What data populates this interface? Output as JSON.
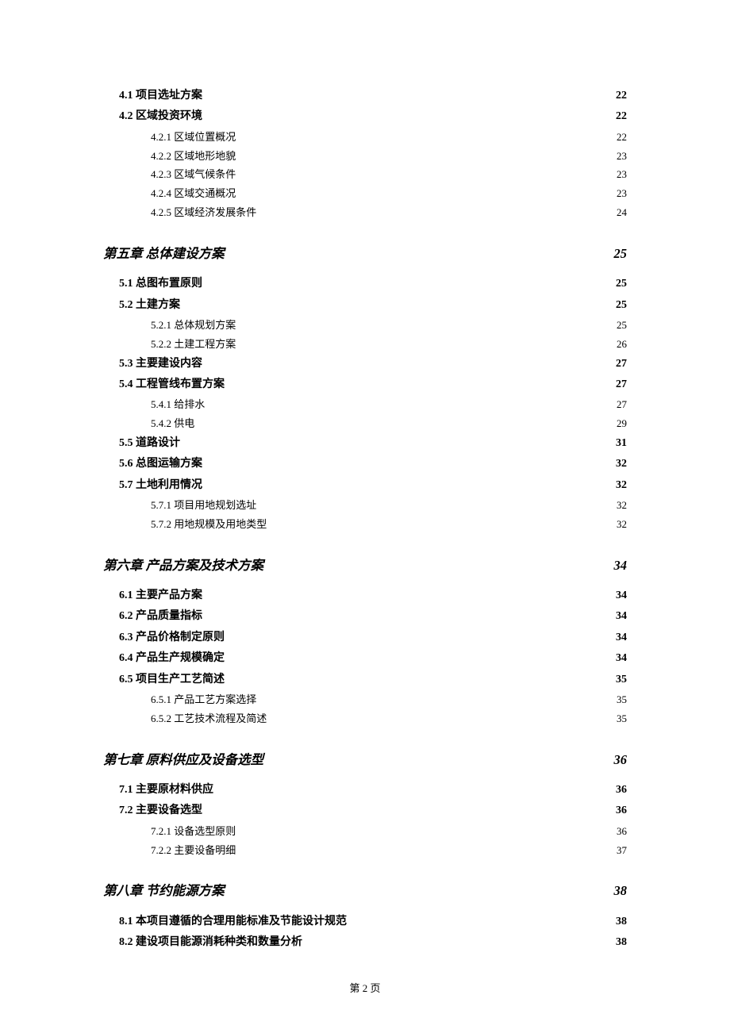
{
  "footer": "第 2 页",
  "toc": [
    {
      "level": "section",
      "label": "4.1 项目选址方案",
      "page": "22"
    },
    {
      "level": "section",
      "label": "4.2 区域投资环境",
      "page": "22"
    },
    {
      "level": "subsection",
      "label": "4.2.1 区域位置概况",
      "page": "22"
    },
    {
      "level": "subsection",
      "label": "4.2.2 区域地形地貌",
      "page": "23"
    },
    {
      "level": "subsection",
      "label": "4.2.3 区域气候条件",
      "page": "23"
    },
    {
      "level": "subsection",
      "label": "4.2.4 区域交通概况",
      "page": "23"
    },
    {
      "level": "subsection",
      "label": "4.2.5 区域经济发展条件",
      "page": "24"
    },
    {
      "level": "chapter",
      "label": "第五章 总体建设方案 ",
      "page": "25"
    },
    {
      "level": "section",
      "label": "5.1 总图布置原则",
      "page": "25"
    },
    {
      "level": "section",
      "label": "5.2 土建方案",
      "page": "25"
    },
    {
      "level": "subsection",
      "label": "5.2.1 总体规划方案",
      "page": "25"
    },
    {
      "level": "subsection",
      "label": "5.2.2 土建工程方案",
      "page": "26"
    },
    {
      "level": "section",
      "label": "5.3 主要建设内容",
      "page": "27"
    },
    {
      "level": "section",
      "label": "5.4 工程管线布置方案",
      "page": "27"
    },
    {
      "level": "subsection",
      "label": "5.4.1 给排水",
      "page": "27"
    },
    {
      "level": "subsection",
      "label": "5.4.2 供电",
      "page": "29"
    },
    {
      "level": "section",
      "label": "5.5 道路设计",
      "page": "31"
    },
    {
      "level": "section",
      "label": "5.6 总图运输方案",
      "page": "32"
    },
    {
      "level": "section",
      "label": "5.7 土地利用情况",
      "page": "32"
    },
    {
      "level": "subsection",
      "label": "5.7.1 项目用地规划选址",
      "page": "32"
    },
    {
      "level": "subsection",
      "label": "5.7.2 用地规模及用地类型",
      "page": "32"
    },
    {
      "level": "chapter",
      "label": "第六章 产品方案及技术方案 ",
      "page": "34"
    },
    {
      "level": "section",
      "label": "6.1 主要产品方案",
      "page": "34"
    },
    {
      "level": "section",
      "label": "6.2 产品质量指标",
      "page": "34"
    },
    {
      "level": "section",
      "label": "6.3 产品价格制定原则",
      "page": "34"
    },
    {
      "level": "section",
      "label": "6.4 产品生产规模确定",
      "page": "34"
    },
    {
      "level": "section",
      "label": "6.5 项目生产工艺简述",
      "page": "35"
    },
    {
      "level": "subsection",
      "label": "6.5.1 产品工艺方案选择",
      "page": "35"
    },
    {
      "level": "subsection",
      "label": "6.5.2 工艺技术流程及简述",
      "page": "35"
    },
    {
      "level": "chapter",
      "label": "第七章 原料供应及设备选型 ",
      "page": "36"
    },
    {
      "level": "section",
      "label": "7.1 主要原材料供应",
      "page": "36"
    },
    {
      "level": "section",
      "label": "7.2 主要设备选型",
      "page": "36"
    },
    {
      "level": "subsection",
      "label": "7.2.1 设备选型原则",
      "page": "36"
    },
    {
      "level": "subsection",
      "label": "7.2.2 主要设备明细",
      "page": "37"
    },
    {
      "level": "chapter",
      "label": "第八章 节约能源方案 ",
      "page": "38"
    },
    {
      "level": "section",
      "label": "8.1 本项目遵循的合理用能标准及节能设计规范",
      "page": "38"
    },
    {
      "level": "section",
      "label": "8.2 建设项目能源消耗种类和数量分析",
      "page": "38"
    }
  ]
}
